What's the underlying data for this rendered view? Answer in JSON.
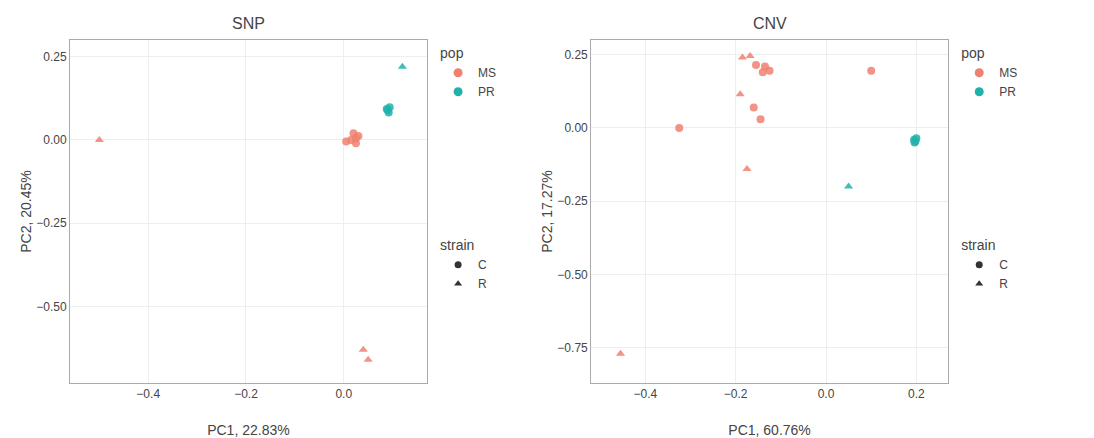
{
  "chart_data": [
    {
      "type": "scatter",
      "title": "SNP",
      "xlabel": "PC1, 22.83%",
      "ylabel": "PC2, 20.45%",
      "xlim": [
        -0.56,
        0.17
      ],
      "ylim": [
        -0.73,
        0.3
      ],
      "xticks": [
        {
          "value": -0.4,
          "label": "−0.4"
        },
        {
          "value": -0.2,
          "label": "−0.2"
        },
        {
          "value": 0.0,
          "label": "0.0"
        }
      ],
      "yticks": [
        0.25,
        {
          "value": 0.0,
          "label": "0.00"
        },
        {
          "value": -0.25,
          "label": "−0.25"
        },
        {
          "value": -0.5,
          "label": "−0.50"
        }
      ],
      "grid": true,
      "legend_titles": [
        "pop",
        "strain"
      ],
      "strain_color": "#333333",
      "series": [
        {
          "name": "MS",
          "strain": "C",
          "color": "#F08070",
          "marker": "circle",
          "x": [
            0.02,
            0.025,
            0.03,
            0.015,
            0.005,
            0.025
          ],
          "y": [
            0.02,
            0.005,
            0.012,
            0.0,
            -0.005,
            -0.01
          ]
        },
        {
          "name": "MS",
          "strain": "R",
          "color": "#F08070",
          "marker": "triangle-up",
          "x": [
            -0.5,
            0.04,
            0.05
          ],
          "y": [
            0.0,
            -0.63,
            -0.66
          ]
        },
        {
          "name": "PR",
          "strain": "C",
          "color": "#20B2AA",
          "marker": "circle",
          "x": [
            0.09,
            0.092,
            0.094,
            0.088
          ],
          "y": [
            0.09,
            0.082,
            0.098,
            0.093
          ]
        },
        {
          "name": "PR",
          "strain": "R",
          "color": "#20B2AA",
          "marker": "triangle-up",
          "x": [
            0.12
          ],
          "y": [
            0.22
          ]
        }
      ]
    },
    {
      "type": "scatter",
      "title": "CNV",
      "xlabel": "PC1, 60.76%",
      "ylabel": "PC2, 17.27%",
      "xlim": [
        -0.52,
        0.27
      ],
      "ylim": [
        -0.87,
        0.3
      ],
      "xticks": [
        {
          "value": -0.4,
          "label": "−0.4"
        },
        {
          "value": -0.2,
          "label": "−0.2"
        },
        {
          "value": 0.0,
          "label": "0.0"
        },
        0.2
      ],
      "yticks": [
        0.25,
        {
          "value": 0.0,
          "label": "0.00"
        },
        {
          "value": -0.25,
          "label": "−0.25"
        },
        {
          "value": -0.5,
          "label": "−0.50"
        },
        {
          "value": -0.75,
          "label": "−0.75"
        }
      ],
      "grid": true,
      "legend_titles": [
        "pop",
        "strain"
      ],
      "strain_color": "#333333",
      "series": [
        {
          "name": "MS",
          "strain": "C",
          "color": "#F08070",
          "marker": "circle",
          "x": [
            -0.155,
            -0.135,
            -0.125,
            -0.14,
            -0.145,
            -0.16,
            -0.325,
            0.1
          ],
          "y": [
            0.215,
            0.21,
            0.195,
            0.19,
            0.03,
            0.07,
            0.0,
            0.195
          ]
        },
        {
          "name": "MS",
          "strain": "R",
          "color": "#F08070",
          "marker": "triangle-up",
          "x": [
            -0.185,
            -0.168,
            -0.19,
            -0.175,
            -0.455
          ],
          "y": [
            0.24,
            0.245,
            0.115,
            -0.14,
            -0.77
          ]
        },
        {
          "name": "PR",
          "strain": "C",
          "color": "#20B2AA",
          "marker": "circle",
          "x": [
            0.195,
            0.2,
            0.196,
            0.198
          ],
          "y": [
            -0.04,
            -0.035,
            -0.05,
            -0.045
          ]
        },
        {
          "name": "PR",
          "strain": "R",
          "color": "#20B2AA",
          "marker": "triangle-up",
          "x": [
            0.05
          ],
          "y": [
            -0.2
          ]
        }
      ]
    }
  ]
}
